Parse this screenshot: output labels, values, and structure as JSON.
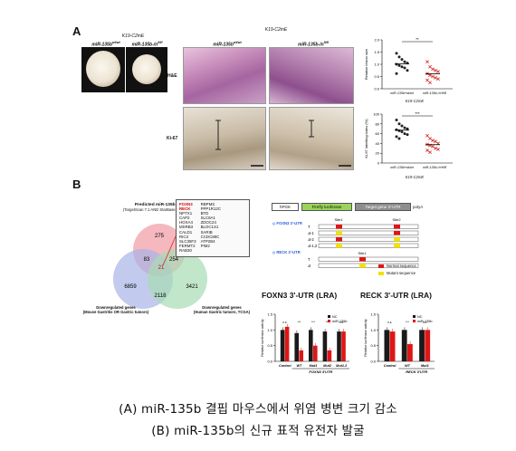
{
  "panelA": {
    "letter": "A",
    "leftTitle": "K19-C2mE",
    "leftCol1": "miR-135b",
    "leftCol1Sup": "wt/wt",
    "leftCol2": "miR-135b-/n",
    "leftCol2Sup": "fl/fl",
    "midTitle": "K19-C2mE",
    "midCol1": "miR-135b",
    "midCol1Sup": "wt/wt",
    "midCol2": "miR-135b-/n",
    "midCol2Sup": "fl/fl",
    "row1": "H&E",
    "row2": "Ki-67",
    "sig1": "**",
    "sig2": "***",
    "yLabel1": "Relative lesion size",
    "yLabel2": "Ki-67 labelling index (%)",
    "xcat": [
      "miR-135b^wt/wt",
      "miR-135b-/n^fl/fl"
    ],
    "model1": "K19-C2mE",
    "model2": "K19-C2mE"
  },
  "chart_data": [
    {
      "type": "scatter",
      "title": "",
      "ylabel": "Relative lesion size",
      "categories": [
        "miR-135b wt/wt",
        "miR-135b-/n fl/fl"
      ],
      "yticks": [
        "2.0",
        "1.5",
        "1.0",
        "0.5",
        "0.0"
      ],
      "ylim": [
        0,
        2.0
      ],
      "series": [
        {
          "values": [
            1.45,
            1.3,
            1.2,
            1.1,
            1.05,
            1.0,
            0.95,
            0.9,
            0.85,
            0.75,
            0.62
          ],
          "color": "#222222"
        },
        {
          "values": [
            1.1,
            0.9,
            0.8,
            0.75,
            0.7,
            0.62,
            0.55,
            0.5,
            0.45,
            0.4,
            0.35,
            0.25
          ],
          "color": "#d62828"
        }
      ]
    },
    {
      "type": "scatter",
      "title": "",
      "ylabel": "Ki-67 labelling index (%)",
      "categories": [
        "miR-135b wt/wt",
        "miR-135b-/n fl/fl"
      ],
      "yticks": [
        "100",
        "80",
        "60",
        "40",
        "20",
        "0"
      ],
      "ylim": [
        0,
        100
      ],
      "series": [
        {
          "values": [
            88,
            80,
            76,
            72,
            70,
            68,
            66,
            64,
            60,
            58,
            54,
            50
          ],
          "color": "#222222"
        },
        {
          "values": [
            56,
            50,
            46,
            44,
            40,
            38,
            36,
            34,
            30,
            28,
            26,
            22
          ],
          "color": "#d62828"
        }
      ]
    },
    {
      "type": "bar",
      "title": "FOXN3 3'-UTR (LRA)",
      "ylabel": "Relative luciferase activity",
      "categories": [
        "Control",
        "WT",
        "Mut1",
        "Mut2",
        "Mut1.2"
      ],
      "group_label": "FOXN3 3'UTR",
      "yticks": [
        "1.5",
        "1.0",
        "0.5",
        "0.0"
      ],
      "ylim": [
        0,
        1.5
      ],
      "sig": [
        "n.s.",
        "***",
        "***",
        "***",
        "n.s."
      ],
      "series": [
        {
          "name": "NC",
          "values": [
            1.0,
            0.9,
            1.0,
            0.95,
            0.95
          ],
          "color": "#1a1a1a"
        },
        {
          "name": "miR-135b",
          "values": [
            1.1,
            0.35,
            0.5,
            0.35,
            0.95
          ],
          "color": "#e01515"
        }
      ]
    },
    {
      "type": "bar",
      "title": "RECK 3'-UTR (LRA)",
      "ylabel": "Relative luciferase activity",
      "categories": [
        "Control",
        "WT",
        "Mut1"
      ],
      "group_label": "RECK 3'UTR",
      "yticks": [
        "1.5",
        "1.0",
        "0.5",
        "0.0"
      ],
      "ylim": [
        0,
        1.5
      ],
      "sig": [
        "n.s.",
        "***",
        "n.s."
      ],
      "series": [
        {
          "name": "NC",
          "values": [
            1.0,
            1.0,
            1.0
          ],
          "color": "#1a1a1a"
        },
        {
          "name": "miR-135b",
          "values": [
            0.95,
            0.55,
            1.0
          ],
          "color": "#e01515"
        }
      ]
    }
  ],
  "panelB": {
    "letter": "B",
    "vennTitle1": "Predicted miR-135b Target Genes",
    "vennTitle2": "(TargetScan 7.1 AND StarBase2.0 AND microRNA.org)",
    "vennLeft1": "Downregulated genes",
    "vennLeft2": "(Mouse Gastritis OR Gastric tumors)",
    "vennRight1": "Downregulated genes",
    "vennRight2": "(Human Gastric tumors, TCGA)",
    "vennNums": {
      "top": "275",
      "left": "6859",
      "right": "3421",
      "tl": "83",
      "tr": "254",
      "center": "21",
      "lr": "2118"
    },
    "colors": {
      "top": "#f2a0a8",
      "left": "#a8b4e6",
      "right": "#a8dcb4"
    },
    "genesA": [
      "FOXN3",
      "RECK",
      "NPTX1",
      "CAP2",
      "HOXA4",
      "MSRB3",
      "CALD1",
      "RIC3",
      "SLC35F3",
      "FERMT2",
      "RAB30"
    ],
    "genesB": [
      "RBPMS",
      "PPP1R12C",
      "BTD",
      "SLC8A1",
      "ZDOC24",
      "BLOC1S1",
      "SARIB",
      "CCDC88C",
      "ATP2B4",
      "PIM2"
    ],
    "construct": {
      "p1": "hPGK",
      "p2": "Firefly luciferase",
      "p3": "Target gene 3'-UTR",
      "p4": "polyA"
    },
    "foxn3Title": "FOXN3 3'-UTR",
    "reckTitle": "RECK 3'-UTR",
    "site1": "Site1",
    "site2": "Site2",
    "foxn3Rows": [
      "WT",
      "Mut-1",
      "Mut-2",
      "Mut-1,2"
    ],
    "reckRows": [
      "WT",
      "Mut"
    ],
    "legendNormal": "Normal sequence",
    "legendMutant": "Mutant sequence",
    "lra1Title": "FOXN3 3'-UTR (LRA)",
    "lra2Title": "RECK 3'-UTR (LRA)",
    "legendNC": "NC",
    "legendMir": "miR-135b"
  },
  "caption": {
    "line1": "(A) miR-135b 결핍 마우스에서 위염 병변 크기 감소",
    "line2": "(B) miR-135b의 신규 표적 유전자 발굴"
  }
}
